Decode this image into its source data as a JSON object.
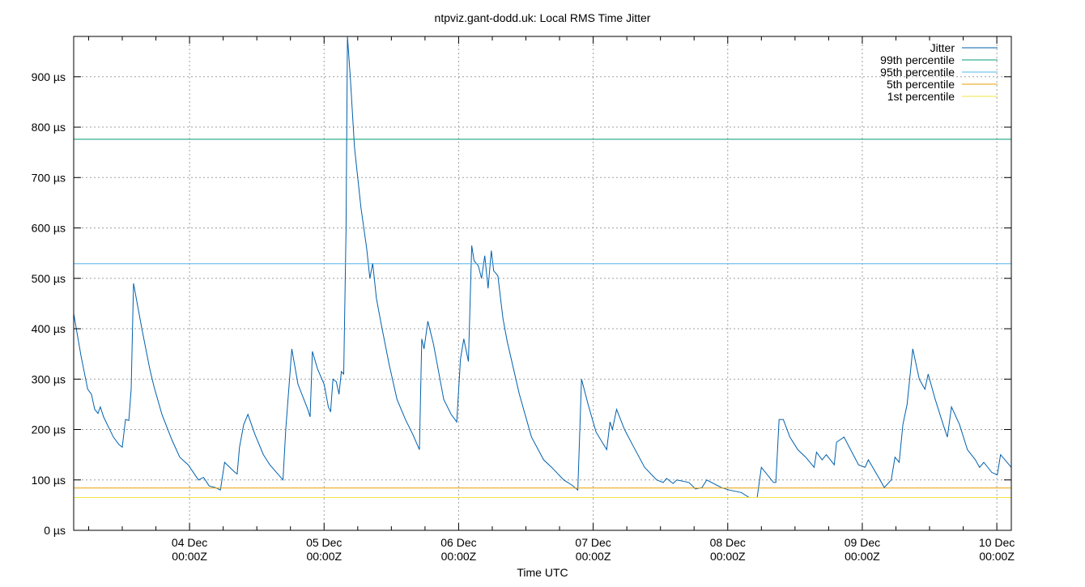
{
  "chart_data": {
    "type": "line",
    "title": "ntpviz.gant-dodd.uk: Local RMS Time Jitter",
    "xlabel": "Time UTC",
    "ylabel": "",
    "ylim": [
      0,
      980
    ],
    "xlim": [
      "03 Dec 03:20",
      "10 Dec 02:35"
    ],
    "grid": true,
    "legend_position": "top-right",
    "y_ticks": [
      {
        "value": 0,
        "label": "0 µs"
      },
      {
        "value": 100,
        "label": "100 µs"
      },
      {
        "value": 200,
        "label": "200 µs"
      },
      {
        "value": 300,
        "label": "300 µs"
      },
      {
        "value": 400,
        "label": "400 µs"
      },
      {
        "value": 500,
        "label": "500 µs"
      },
      {
        "value": 600,
        "label": "600 µs"
      },
      {
        "value": 700,
        "label": "700 µs"
      },
      {
        "value": 800,
        "label": "800 µs"
      },
      {
        "value": 900,
        "label": "900 µs"
      }
    ],
    "x_ticks": [
      {
        "value": "04 Dec 00:00",
        "label": [
          "04 Dec",
          "00:00Z"
        ]
      },
      {
        "value": "05 Dec 00:00",
        "label": [
          "05 Dec",
          "00:00Z"
        ]
      },
      {
        "value": "06 Dec 00:00",
        "label": [
          "06 Dec",
          "00:00Z"
        ]
      },
      {
        "value": "07 Dec 00:00",
        "label": [
          "07 Dec",
          "00:00Z"
        ]
      },
      {
        "value": "08 Dec 00:00",
        "label": [
          "08 Dec",
          "00:00Z"
        ]
      },
      {
        "value": "09 Dec 00:00",
        "label": [
          "09 Dec",
          "00:00Z"
        ]
      },
      {
        "value": "10 Dec 00:00",
        "label": [
          "10 Dec",
          "00:00Z"
        ]
      }
    ],
    "series": [
      {
        "name": "Jitter",
        "color": "#0060ad",
        "points": [
          [
            "03 Dec 03:20",
            430
          ],
          [
            "03 Dec 04:40",
            345
          ],
          [
            "03 Dec 05:50",
            280
          ],
          [
            "03 Dec 06:30",
            270
          ],
          [
            "03 Dec 07:05",
            240
          ],
          [
            "03 Dec 07:40",
            232
          ],
          [
            "03 Dec 08:05",
            245
          ],
          [
            "03 Dec 08:40",
            225
          ],
          [
            "03 Dec 10:25",
            185
          ],
          [
            "03 Dec 11:25",
            170
          ],
          [
            "03 Dec 12:00",
            165
          ],
          [
            "03 Dec 12:35",
            220
          ],
          [
            "03 Dec 13:10",
            218
          ],
          [
            "03 Dec 13:35",
            280
          ],
          [
            "03 Dec 14:00",
            490
          ],
          [
            "03 Dec 15:30",
            400
          ],
          [
            "03 Dec 16:55",
            320
          ],
          [
            "03 Dec 17:40",
            285
          ],
          [
            "03 Dec 19:05",
            230
          ],
          [
            "03 Dec 20:50",
            180
          ],
          [
            "03 Dec 22:15",
            145
          ],
          [
            "03 Dec 23:45",
            130
          ],
          [
            "04 Dec 01:35",
            100
          ],
          [
            "04 Dec 02:30",
            105
          ],
          [
            "04 Dec 03:30",
            88
          ],
          [
            "04 Dec 04:35",
            85
          ],
          [
            "04 Dec 05:30",
            80
          ],
          [
            "04 Dec 06:15",
            135
          ],
          [
            "04 Dec 08:05",
            115
          ],
          [
            "04 Dec 08:30",
            112
          ],
          [
            "04 Dec 08:55",
            165
          ],
          [
            "04 Dec 09:40",
            210
          ],
          [
            "04 Dec 10:25",
            230
          ],
          [
            "04 Dec 11:40",
            190
          ],
          [
            "04 Dec 13:10",
            150
          ],
          [
            "04 Dec 14:20",
            130
          ],
          [
            "04 Dec 16:40",
            100
          ],
          [
            "04 Dec 17:10",
            200
          ],
          [
            "04 Dec 18:15",
            360
          ],
          [
            "04 Dec 19:20",
            290
          ],
          [
            "04 Dec 21:05",
            240
          ],
          [
            "04 Dec 21:30",
            225
          ],
          [
            "04 Dec 21:55",
            355
          ],
          [
            "04 Dec 22:50",
            320
          ],
          [
            "05 Dec 00:00",
            290
          ],
          [
            "05 Dec 00:45",
            245
          ],
          [
            "05 Dec 01:10",
            235
          ],
          [
            "05 Dec 01:35",
            300
          ],
          [
            "05 Dec 02:10",
            295
          ],
          [
            "05 Dec 02:40",
            270
          ],
          [
            "05 Dec 03:05",
            315
          ],
          [
            "05 Dec 03:30",
            310
          ],
          [
            "05 Dec 03:55",
            600
          ],
          [
            "05 Dec 04:10",
            980
          ],
          [
            "05 Dec 04:40",
            900
          ],
          [
            "05 Dec 05:25",
            760
          ],
          [
            "05 Dec 06:35",
            640
          ],
          [
            "05 Dec 07:35",
            560
          ],
          [
            "05 Dec 08:10",
            500
          ],
          [
            "05 Dec 08:40",
            530
          ],
          [
            "05 Dec 09:20",
            460
          ],
          [
            "05 Dec 10:10",
            410
          ],
          [
            "05 Dec 11:35",
            330
          ],
          [
            "05 Dec 13:00",
            260
          ],
          [
            "05 Dec 14:30",
            220
          ],
          [
            "05 Dec 15:50",
            190
          ],
          [
            "05 Dec 17:00",
            160
          ],
          [
            "05 Dec 17:25",
            380
          ],
          [
            "05 Dec 17:50",
            360
          ],
          [
            "05 Dec 18:30",
            415
          ],
          [
            "05 Dec 19:30",
            370
          ],
          [
            "05 Dec 20:40",
            300
          ],
          [
            "05 Dec 21:20",
            260
          ],
          [
            "05 Dec 22:40",
            230
          ],
          [
            "05 Dec 23:40",
            215
          ],
          [
            "06 Dec 00:20",
            340
          ],
          [
            "06 Dec 00:55",
            380
          ],
          [
            "06 Dec 01:45",
            335
          ],
          [
            "06 Dec 02:20",
            565
          ],
          [
            "06 Dec 02:45",
            535
          ],
          [
            "06 Dec 03:30",
            525
          ],
          [
            "06 Dec 04:05",
            500
          ],
          [
            "06 Dec 04:40",
            545
          ],
          [
            "06 Dec 05:15",
            480
          ],
          [
            "06 Dec 05:50",
            555
          ],
          [
            "06 Dec 06:15",
            515
          ],
          [
            "06 Dec 07:00",
            505
          ],
          [
            "06 Dec 07:55",
            420
          ],
          [
            "06 Dec 08:40",
            375
          ],
          [
            "06 Dec 10:50",
            270
          ],
          [
            "06 Dec 13:00",
            185
          ],
          [
            "06 Dec 15:10",
            140
          ],
          [
            "06 Dec 16:35",
            125
          ],
          [
            "06 Dec 18:45",
            100
          ],
          [
            "06 Dec 20:10",
            90
          ],
          [
            "06 Dec 21:15",
            80
          ],
          [
            "06 Dec 21:55",
            300
          ],
          [
            "06 Dec 23:05",
            250
          ],
          [
            "07 Dec 00:30",
            195
          ],
          [
            "07 Dec 02:25",
            160
          ],
          [
            "07 Dec 03:00",
            215
          ],
          [
            "07 Dec 03:25",
            200
          ],
          [
            "07 Dec 04:10",
            240
          ],
          [
            "07 Dec 05:35",
            200
          ],
          [
            "07 Dec 07:00",
            170
          ],
          [
            "07 Dec 09:10",
            125
          ],
          [
            "07 Dec 11:20",
            100
          ],
          [
            "07 Dec 12:30",
            95
          ],
          [
            "07 Dec 13:05",
            103
          ],
          [
            "07 Dec 14:15",
            93
          ],
          [
            "07 Dec 14:55",
            100
          ],
          [
            "07 Dec 17:05",
            95
          ],
          [
            "07 Dec 18:15",
            82
          ],
          [
            "07 Dec 19:25",
            85
          ],
          [
            "07 Dec 20:15",
            100
          ],
          [
            "07 Dec 22:50",
            85
          ],
          [
            "08 Dec 00:15",
            80
          ],
          [
            "08 Dec 02:25",
            75
          ],
          [
            "08 Dec 03:50",
            65
          ],
          [
            "08 Dec 05:15",
            65
          ],
          [
            "08 Dec 06:00",
            125
          ],
          [
            "08 Dec 08:10",
            95
          ],
          [
            "08 Dec 08:35",
            95
          ],
          [
            "08 Dec 09:10",
            220
          ],
          [
            "08 Dec 09:55",
            220
          ],
          [
            "08 Dec 11:05",
            185
          ],
          [
            "08 Dec 12:30",
            160
          ],
          [
            "08 Dec 13:55",
            145
          ],
          [
            "08 Dec 15:25",
            125
          ],
          [
            "08 Dec 15:50",
            155
          ],
          [
            "08 Dec 16:50",
            140
          ],
          [
            "08 Dec 17:35",
            150
          ],
          [
            "08 Dec 19:00",
            130
          ],
          [
            "08 Dec 19:25",
            175
          ],
          [
            "08 Dec 20:45",
            185
          ],
          [
            "08 Dec 21:55",
            160
          ],
          [
            "08 Dec 23:20",
            130
          ],
          [
            "09 Dec 00:30",
            125
          ],
          [
            "09 Dec 01:05",
            140
          ],
          [
            "09 Dec 02:55",
            105
          ],
          [
            "09 Dec 03:55",
            85
          ],
          [
            "09 Dec 05:10",
            100
          ],
          [
            "09 Dec 05:50",
            145
          ],
          [
            "09 Dec 06:35",
            135
          ],
          [
            "09 Dec 07:15",
            210
          ],
          [
            "09 Dec 08:00",
            250
          ],
          [
            "09 Dec 09:00",
            360
          ],
          [
            "09 Dec 10:10",
            300
          ],
          [
            "09 Dec 11:10",
            280
          ],
          [
            "09 Dec 11:45",
            310
          ],
          [
            "09 Dec 13:00",
            260
          ],
          [
            "09 Dec 14:25",
            210
          ],
          [
            "09 Dec 15:10",
            185
          ],
          [
            "09 Dec 15:55",
            245
          ],
          [
            "09 Dec 17:20",
            210
          ],
          [
            "09 Dec 18:45",
            160
          ],
          [
            "09 Dec 20:10",
            140
          ],
          [
            "09 Dec 20:55",
            125
          ],
          [
            "09 Dec 21:40",
            135
          ],
          [
            "09 Dec 23:05",
            115
          ],
          [
            "10 Dec 00:05",
            110
          ],
          [
            "10 Dec 00:40",
            150
          ],
          [
            "10 Dec 02:35",
            125
          ]
        ]
      },
      {
        "name": "99th percentile",
        "color": "#009e73",
        "constant": 776
      },
      {
        "name": "95th percentile",
        "color": "#56b4e9",
        "constant": 529
      },
      {
        "name": "5th percentile",
        "color": "#e69f00",
        "constant": 84
      },
      {
        "name": "1st percentile",
        "color": "#f0e442",
        "constant": 65
      }
    ]
  }
}
